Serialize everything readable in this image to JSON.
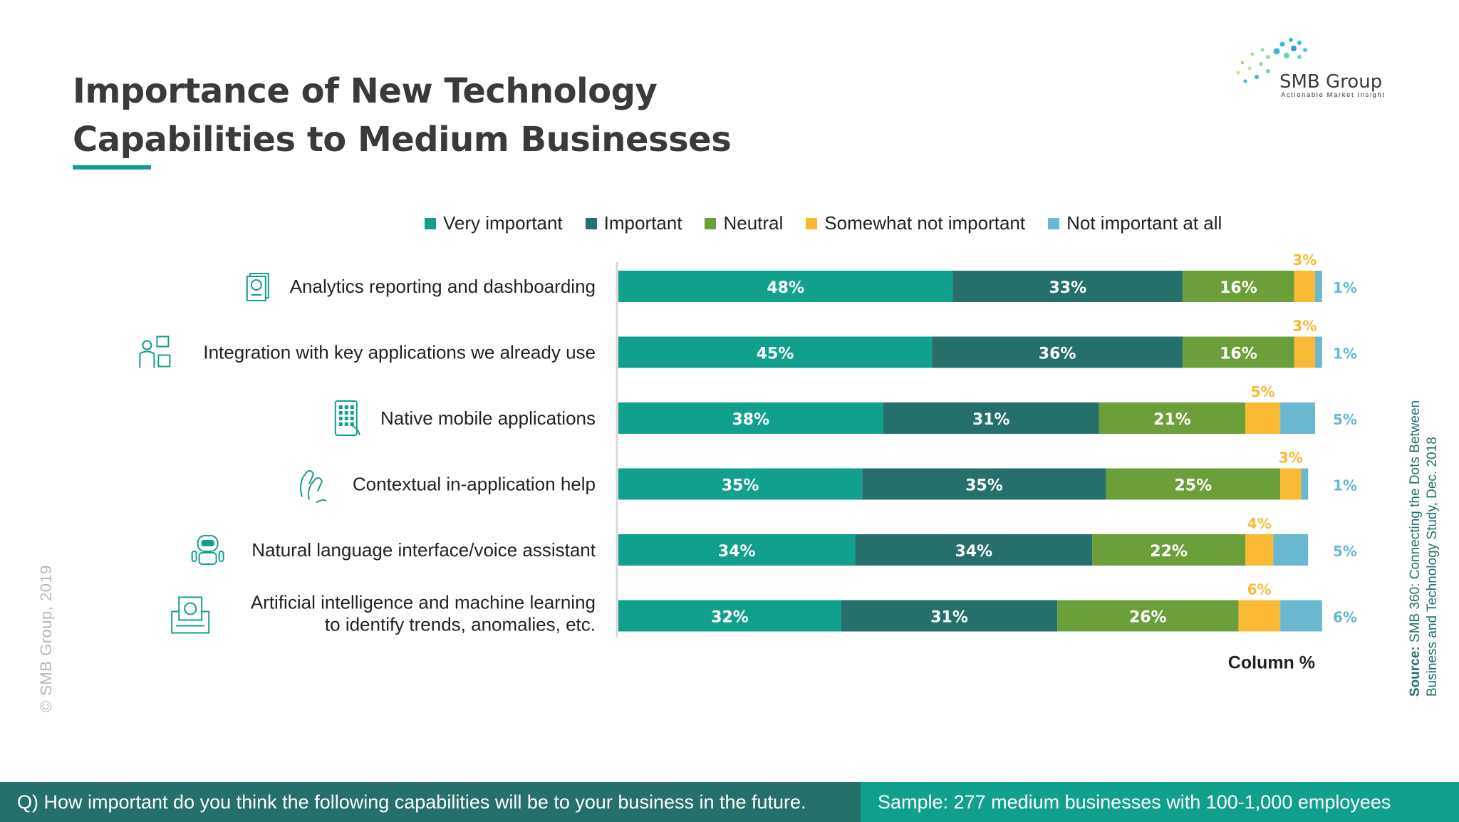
{
  "header": {
    "title_line1": "Importance of New Technology",
    "title_line2": "Capabilities to Medium Businesses"
  },
  "logo": {
    "name": "SMB Group",
    "tagline": "Actionable Market Insight"
  },
  "copyright": "© SMB Group, 2019",
  "source": {
    "label": "Source:",
    "line1": "SMB 360: Connecting the Dots Between",
    "line2": "Business and Technology  Study, Dec. 2018"
  },
  "footer": {
    "question": "Q) How important do you think the following capabilities will be to your business in the future.",
    "sample": "Sample: 277 medium businesses with 100-1,000 employees"
  },
  "colors": {
    "very_important": "#11a08c",
    "important": "#25706b",
    "neutral": "#6a9f39",
    "somewhat_not_important": "#f9b934",
    "not_important_at_all": "#69b8cf",
    "title_underline": "#11a08c"
  },
  "chart_data": {
    "type": "bar",
    "orientation": "horizontal",
    "stacked": true,
    "legend_position": "top",
    "xlabel": "Column %",
    "categories": [
      "Analytics reporting and dashboarding",
      "Integration with key applications we already use",
      "Native mobile applications",
      "Contextual in-application help",
      "Natural language interface/voice assistant",
      "Artificial intelligence and machine learning\nto identify trends, anomalies, etc."
    ],
    "category_icons": [
      "report-icon",
      "puzzle-person-icon",
      "mobile-app-icon",
      "helping-hand-icon",
      "robot-icon",
      "ai-chip-icon"
    ],
    "series": [
      {
        "name": "Very important",
        "color": "#11a08c",
        "values": [
          48,
          45,
          38,
          35,
          34,
          32
        ]
      },
      {
        "name": "Important",
        "color": "#25706b",
        "values": [
          33,
          36,
          31,
          35,
          34,
          31
        ]
      },
      {
        "name": "Neutral",
        "color": "#6a9f39",
        "values": [
          16,
          16,
          21,
          25,
          22,
          26
        ]
      },
      {
        "name": "Somewhat not important",
        "color": "#f9b934",
        "values": [
          3,
          3,
          5,
          3,
          4,
          6
        ]
      },
      {
        "name": "Not important at all",
        "color": "#69b8cf",
        "values": [
          1,
          1,
          5,
          1,
          5,
          6
        ]
      }
    ]
  }
}
